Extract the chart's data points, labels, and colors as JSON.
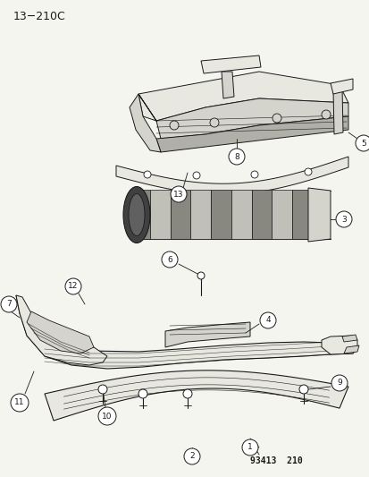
{
  "title": "13−210C",
  "footer": "93413  210",
  "bg_color": "#f5f5f0",
  "line_color": "#1a1a1a",
  "fill_light": "#e8e8e0",
  "fill_mid": "#d4d4cc",
  "fill_dark": "#b0b0a8"
}
